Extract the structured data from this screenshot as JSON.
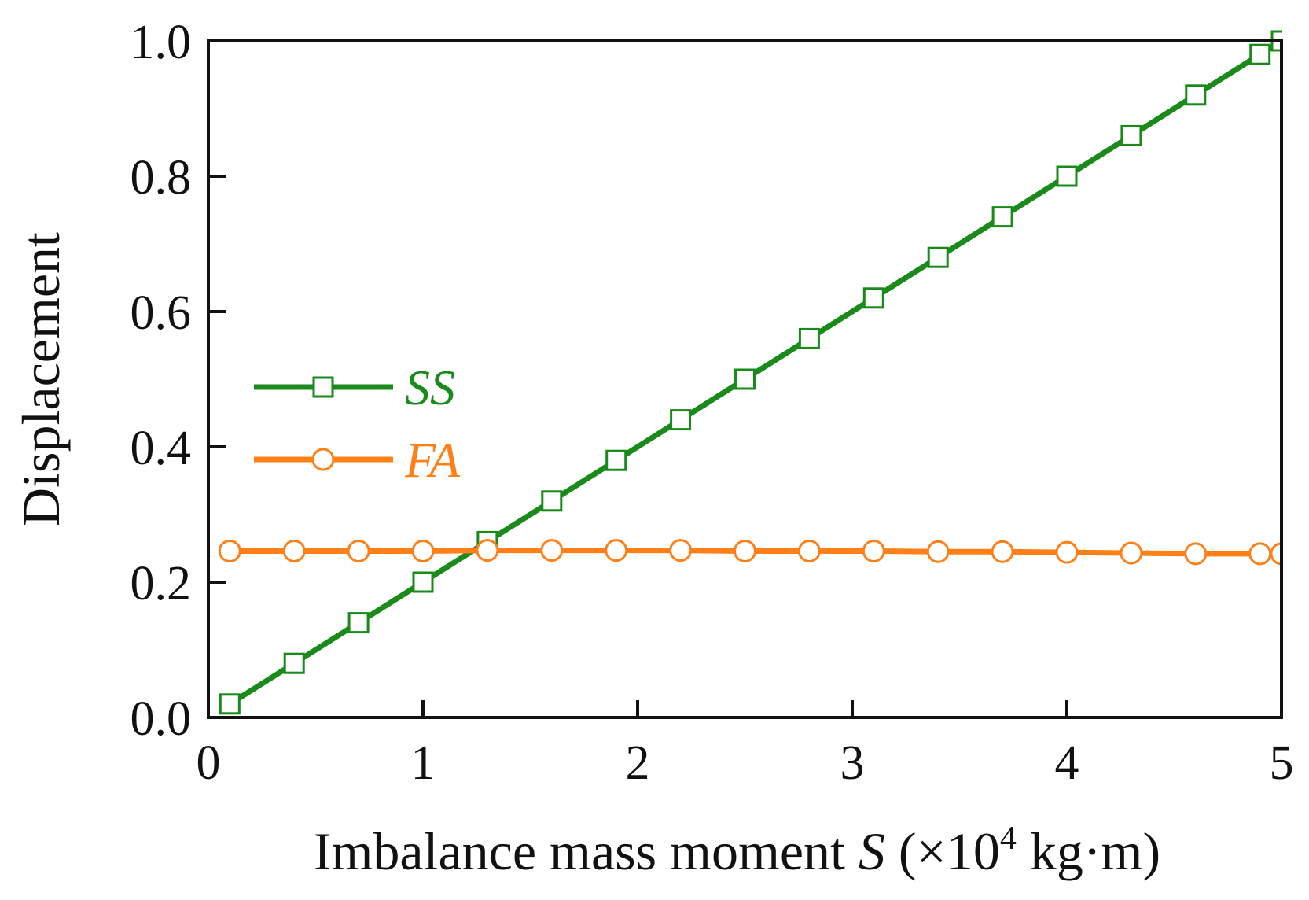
{
  "chart_data": {
    "type": "line",
    "xlabel": {
      "prefix": "Imbalance mass moment ",
      "symbol": "S",
      "unit_open": " (×10",
      "exponent": "4",
      "unit_close": " kg·m)"
    },
    "ylabel": "Displacement",
    "xlim": [
      0,
      5
    ],
    "ylim": [
      0,
      1.0
    ],
    "x_ticks": [
      0,
      1,
      2,
      3,
      4,
      5
    ],
    "x_tick_labels": [
      "0",
      "1",
      "2",
      "3",
      "4",
      "5"
    ],
    "y_ticks": [
      0,
      0.2,
      0.4,
      0.6,
      0.8,
      1.0
    ],
    "y_tick_labels": [
      "0.0",
      "0.2",
      "0.4",
      "0.6",
      "0.8",
      "1.0"
    ],
    "legend_position": "center-left",
    "series": [
      {
        "name": "SS",
        "color": "#1a8a1a",
        "marker": "square",
        "x": [
          0.1,
          0.4,
          0.7,
          1.0,
          1.3,
          1.6,
          1.9,
          2.2,
          2.5,
          2.8,
          3.1,
          3.4,
          3.7,
          4.0,
          4.3,
          4.6,
          4.9,
          5.0
        ],
        "values": [
          0.02,
          0.08,
          0.14,
          0.2,
          0.26,
          0.32,
          0.38,
          0.44,
          0.5,
          0.56,
          0.62,
          0.68,
          0.74,
          0.8,
          0.86,
          0.92,
          0.98,
          1.0
        ]
      },
      {
        "name": "FA",
        "color": "#ff8019",
        "marker": "circle",
        "x": [
          0.1,
          0.4,
          0.7,
          1.0,
          1.3,
          1.6,
          1.9,
          2.2,
          2.5,
          2.8,
          3.1,
          3.4,
          3.7,
          4.0,
          4.3,
          4.6,
          4.9,
          5.0
        ],
        "values": [
          0.246,
          0.246,
          0.246,
          0.246,
          0.247,
          0.247,
          0.247,
          0.247,
          0.246,
          0.246,
          0.246,
          0.245,
          0.245,
          0.244,
          0.243,
          0.242,
          0.242,
          0.242
        ]
      }
    ]
  }
}
